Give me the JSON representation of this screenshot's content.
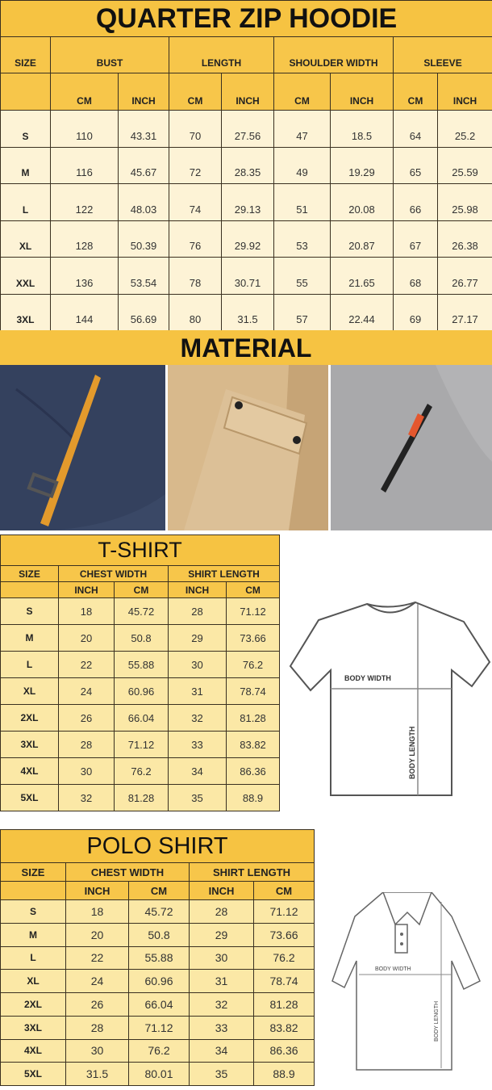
{
  "hoodie": {
    "title": "QUARTER ZIP HOODIE",
    "size_label": "SIZE",
    "groups": [
      "BUST",
      "LENGTH",
      "SHOULDER WIDTH",
      "SLEEVE"
    ],
    "units": [
      "CM",
      "INCH",
      "CM",
      "INCH",
      "CM",
      "INCH",
      "CM",
      "INCH"
    ],
    "rows": [
      [
        "S",
        "110",
        "43.31",
        "70",
        "27.56",
        "47",
        "18.5",
        "64",
        "25.2"
      ],
      [
        "M",
        "116",
        "45.67",
        "72",
        "28.35",
        "49",
        "19.29",
        "65",
        "25.59"
      ],
      [
        "L",
        "122",
        "48.03",
        "74",
        "29.13",
        "51",
        "20.08",
        "66",
        "25.98"
      ],
      [
        "XL",
        "128",
        "50.39",
        "76",
        "29.92",
        "53",
        "20.87",
        "67",
        "26.38"
      ],
      [
        "XXL",
        "136",
        "53.54",
        "78",
        "30.71",
        "55",
        "21.65",
        "68",
        "26.77"
      ],
      [
        "3XL",
        "144",
        "56.69",
        "80",
        "31.5",
        "57",
        "22.44",
        "69",
        "27.17"
      ]
    ]
  },
  "material": {
    "title": "MATERIAL",
    "photos": [
      "navy-fabric-orange-strap",
      "tan-fabric-flap-pocket",
      "gray-fabric-zipper"
    ]
  },
  "tshirt": {
    "title": "T-SHIRT",
    "size_label": "SIZE",
    "groups": [
      "CHEST WIDTH",
      "SHIRT LENGTH"
    ],
    "units": [
      "INCH",
      "CM",
      "INCH",
      "CM"
    ],
    "rows": [
      [
        "S",
        "18",
        "45.72",
        "28",
        "71.12"
      ],
      [
        "M",
        "20",
        "50.8",
        "29",
        "73.66"
      ],
      [
        "L",
        "22",
        "55.88",
        "30",
        "76.2"
      ],
      [
        "XL",
        "24",
        "60.96",
        "31",
        "78.74"
      ],
      [
        "2XL",
        "26",
        "66.04",
        "32",
        "81.28"
      ],
      [
        "3XL",
        "28",
        "71.12",
        "33",
        "83.82"
      ],
      [
        "4XL",
        "30",
        "76.2",
        "34",
        "86.36"
      ],
      [
        "5XL",
        "32",
        "81.28",
        "35",
        "88.9"
      ]
    ],
    "diagram": {
      "width_label": "BODY WIDTH",
      "length_label": "BODY LENGTH"
    }
  },
  "polo": {
    "title": "POLO SHIRT",
    "size_label": "SIZE",
    "groups": [
      "CHEST WIDTH",
      "SHIRT LENGTH"
    ],
    "units": [
      "INCH",
      "CM",
      "INCH",
      "CM"
    ],
    "rows": [
      [
        "S",
        "18",
        "45.72",
        "28",
        "71.12"
      ],
      [
        "M",
        "20",
        "50.8",
        "29",
        "73.66"
      ],
      [
        "L",
        "22",
        "55.88",
        "30",
        "76.2"
      ],
      [
        "XL",
        "24",
        "60.96",
        "31",
        "78.74"
      ],
      [
        "2XL",
        "26",
        "66.04",
        "32",
        "81.28"
      ],
      [
        "3XL",
        "28",
        "71.12",
        "33",
        "83.82"
      ],
      [
        "4XL",
        "30",
        "76.2",
        "34",
        "86.36"
      ],
      [
        "5XL",
        "31.5",
        "80.01",
        "35",
        "88.9"
      ]
    ],
    "diagram": {
      "width_label": "BODY WIDTH",
      "length_label": "BODY LENGTH"
    }
  },
  "colors": {
    "header": "#f7c64a",
    "title": "#f6c342",
    "cell_light": "#fdf3d6",
    "cell_yellow": "#fbe8a6"
  }
}
